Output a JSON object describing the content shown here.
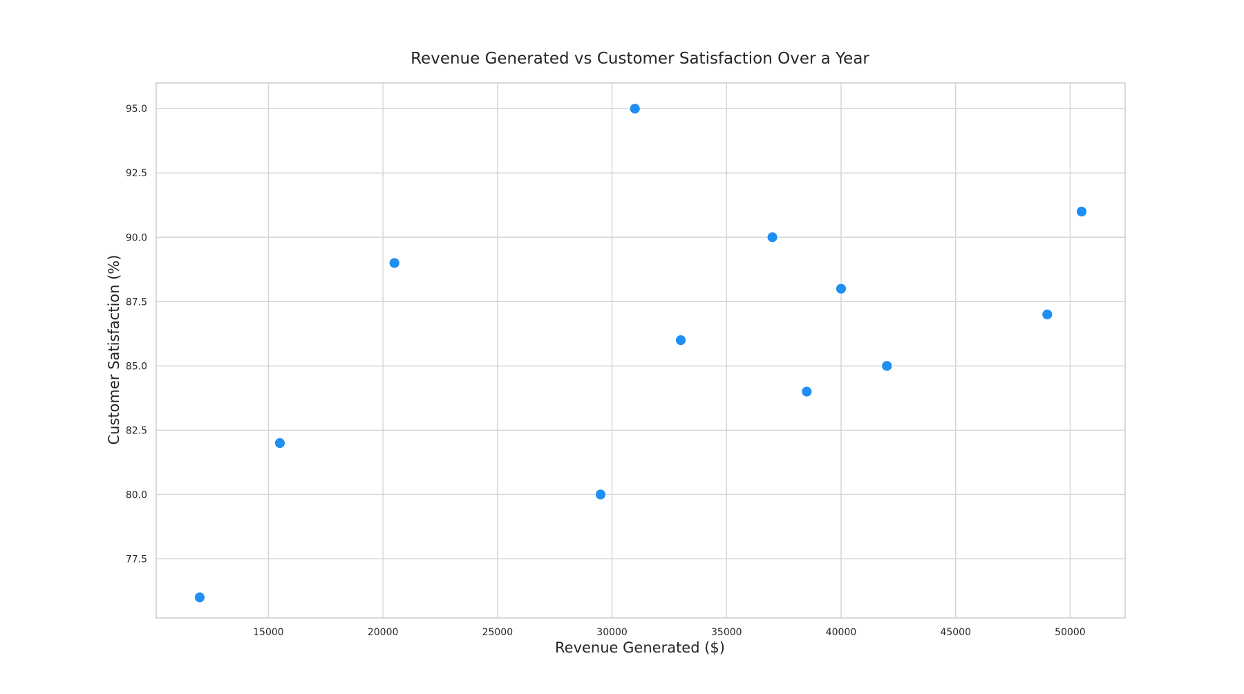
{
  "chart_data": {
    "type": "scatter",
    "title": "Revenue Generated vs Customer Satisfaction Over a Year",
    "xlabel": "Revenue Generated ($)",
    "ylabel": "Customer Satisfaction (%)",
    "xlim": [
      10100,
      52400
    ],
    "ylim": [
      75.2,
      96.0
    ],
    "x_ticks": [
      15000,
      20000,
      25000,
      30000,
      35000,
      40000,
      45000,
      50000
    ],
    "x_tick_labels": [
      "15000",
      "20000",
      "25000",
      "30000",
      "35000",
      "40000",
      "45000",
      "50000"
    ],
    "y_ticks": [
      77.5,
      80.0,
      82.5,
      85.0,
      87.5,
      90.0,
      92.5,
      95.0
    ],
    "y_tick_labels": [
      "77.5",
      "80.0",
      "82.5",
      "85.0",
      "87.5",
      "90.0",
      "92.5",
      "95.0"
    ],
    "grid": true,
    "legend": false,
    "marker_color": "#1f8ff2",
    "points": [
      {
        "x": 12000,
        "y": 76
      },
      {
        "x": 15500,
        "y": 82
      },
      {
        "x": 20500,
        "y": 89
      },
      {
        "x": 29500,
        "y": 80
      },
      {
        "x": 31000,
        "y": 95
      },
      {
        "x": 33000,
        "y": 86
      },
      {
        "x": 37000,
        "y": 90
      },
      {
        "x": 38500,
        "y": 84
      },
      {
        "x": 40000,
        "y": 88
      },
      {
        "x": 42000,
        "y": 85
      },
      {
        "x": 49000,
        "y": 87
      },
      {
        "x": 50500,
        "y": 91
      }
    ]
  }
}
